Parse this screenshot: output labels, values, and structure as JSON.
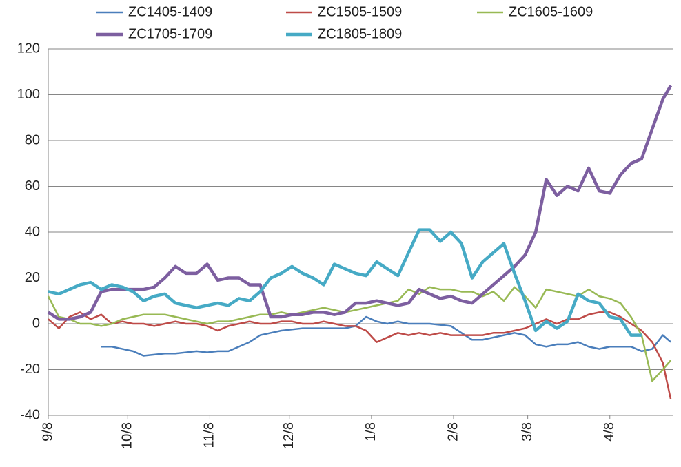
{
  "chart_data": {
    "type": "line",
    "x": [
      0,
      4,
      8,
      12,
      16,
      20,
      24,
      28,
      32,
      36,
      40,
      44,
      48,
      52,
      56,
      60,
      64,
      68,
      72,
      76,
      80,
      84,
      88,
      92,
      96,
      100,
      104,
      108,
      112,
      116,
      120,
      124,
      128,
      132,
      136,
      140,
      144,
      148,
      152,
      156,
      160,
      164,
      168,
      172,
      176,
      180,
      184,
      188,
      192,
      196,
      200,
      204,
      208,
      212,
      216,
      220,
      224,
      228,
      232,
      235
    ],
    "xlim": [
      0,
      236
    ],
    "xticks": [
      {
        "value": 0,
        "label": "9/8"
      },
      {
        "value": 30,
        "label": "10/8"
      },
      {
        "value": 61,
        "label": "11/8"
      },
      {
        "value": 91,
        "label": "12/8"
      },
      {
        "value": 122,
        "label": "1/8"
      },
      {
        "value": 153,
        "label": "2/8"
      },
      {
        "value": 181,
        "label": "3/8"
      },
      {
        "value": 212,
        "label": "4/8"
      }
    ],
    "ylim": [
      -40,
      120
    ],
    "yticks": [
      -40,
      -20,
      0,
      20,
      40,
      60,
      80,
      100,
      120
    ],
    "grid": true,
    "legend": "top",
    "series": [
      {
        "name": "ZC1405-1409",
        "color": "#4a7ebb",
        "line_width": 2.5,
        "values": [
          null,
          null,
          null,
          null,
          null,
          -10,
          -10,
          -11,
          -12,
          -14,
          -13.5,
          -13,
          -13,
          -12.5,
          -12,
          -12.5,
          -12,
          -12,
          -10,
          -8,
          -5,
          -4,
          -3,
          -2.5,
          -2,
          -2,
          -2,
          -2,
          -2,
          -1,
          3,
          1,
          0,
          1,
          0,
          0,
          0,
          -0.5,
          -1,
          -4,
          -7,
          -7,
          -6,
          -5,
          -4,
          -5,
          -9,
          -10,
          -9,
          -9,
          -8,
          -10,
          -11,
          -10,
          -10,
          -10,
          -12,
          -11,
          -5,
          -8
        ]
      },
      {
        "name": "ZC1505-1509",
        "color": "#be4b48",
        "line_width": 2.5,
        "values": [
          2,
          -2,
          3,
          5,
          2,
          4,
          0,
          1,
          0,
          0,
          -1,
          0,
          1,
          0,
          0,
          -1,
          -3,
          -1,
          0,
          1,
          0,
          0,
          1,
          1,
          0,
          0,
          1,
          0,
          -1,
          -1,
          -3,
          -8,
          -6,
          -4,
          -5,
          -4,
          -5,
          -4,
          -5,
          -5,
          -5,
          -5,
          -4,
          -4,
          -3,
          -2,
          0,
          2,
          0,
          2,
          2,
          4,
          5,
          5,
          3,
          0,
          -3,
          -8,
          -17,
          -33
        ]
      },
      {
        "name": "ZC1605-1609",
        "color": "#98b954",
        "line_width": 2.5,
        "values": [
          12,
          3,
          2,
          0,
          0,
          -1,
          0,
          2,
          3,
          4,
          4,
          4,
          3,
          2,
          1,
          0,
          1,
          1,
          2,
          3,
          4,
          4,
          5,
          4,
          5,
          6,
          7,
          6,
          5,
          6,
          7,
          8,
          9,
          10,
          15,
          13,
          16,
          15,
          15,
          14,
          14,
          12,
          14,
          10,
          16,
          12,
          7,
          15,
          14,
          13,
          12,
          15,
          12,
          11,
          9,
          3,
          -5,
          -25,
          -20,
          -16
        ]
      },
      {
        "name": "ZC1705-1709",
        "color": "#7d5fa0",
        "line_width": 4.5,
        "values": [
          5,
          2,
          2,
          3,
          5,
          14,
          15,
          15,
          15,
          15,
          16,
          20,
          25,
          22,
          22,
          26,
          19,
          20,
          20,
          17,
          17,
          3,
          3,
          4,
          4,
          5,
          5,
          4,
          5,
          9,
          9,
          10,
          9,
          8,
          9,
          15,
          13,
          11,
          12,
          10,
          9,
          13,
          17,
          21,
          25,
          30,
          40,
          63,
          56,
          60,
          58,
          68,
          58,
          57,
          65,
          70,
          72,
          85,
          98,
          104
        ]
      },
      {
        "name": "ZC1805-1809",
        "color": "#46aac5",
        "line_width": 4.5,
        "values": [
          14,
          13,
          15,
          17,
          18,
          15,
          17,
          16,
          14,
          10,
          12,
          13,
          9,
          8,
          7,
          8,
          9,
          8,
          11,
          10,
          14,
          20,
          22,
          25,
          22,
          20,
          17,
          26,
          24,
          22,
          21,
          27,
          24,
          21,
          31,
          41,
          41,
          36,
          40,
          35,
          20,
          27,
          31,
          35,
          22,
          10,
          -3,
          1,
          -2,
          1,
          13,
          10,
          9,
          3,
          2,
          -5,
          -5,
          null,
          null,
          null
        ]
      }
    ]
  }
}
